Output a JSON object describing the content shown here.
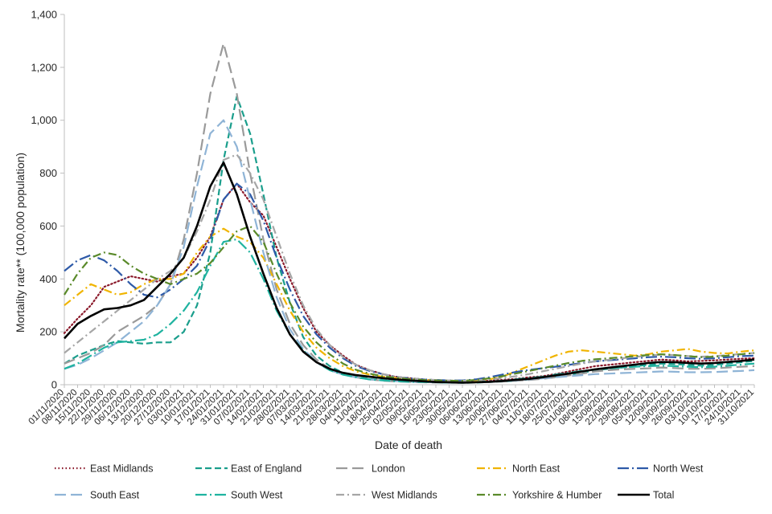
{
  "chart_data": {
    "type": "line",
    "title": "",
    "xlabel": "Date of death",
    "ylabel": "Mortality rate** (100,000 population)",
    "ylim": [
      0,
      1400
    ],
    "yticks": [
      0,
      200,
      400,
      600,
      800,
      1000,
      1200,
      1400
    ],
    "ytick_labels": [
      "0",
      "200",
      "400",
      "600",
      "800",
      "1,000",
      "1,200",
      "1,400"
    ],
    "grid": false,
    "legend_position": "bottom",
    "xtick_labels": [
      "01/11/2020",
      "08/11/2020",
      "15/11/2020",
      "22/11/2020",
      "29/11/2020",
      "06/12/2020",
      "13/12/2020",
      "20/12/2020",
      "27/12/2020",
      "03/01/2021",
      "10/01/2021",
      "17/01/2021",
      "24/01/2021",
      "31/01/2021",
      "07/02/2021",
      "14/02/2021",
      "21/02/2021",
      "28/02/2021",
      "07/03/2021",
      "14/03/2021",
      "21/03/2021",
      "28/03/2021",
      "04/04/2021",
      "11/04/2021",
      "18/04/2021",
      "25/04/2021",
      "02/05/2021",
      "09/05/2021",
      "16/05/2021",
      "23/05/2021",
      "30/05/2021",
      "06/06/2021",
      "13/06/2021",
      "20/06/2021",
      "27/06/2021",
      "04/07/2021",
      "11/07/2021",
      "18/07/2021",
      "25/07/2021",
      "01/08/2021",
      "08/08/2021",
      "15/08/2021",
      "22/08/2021",
      "29/08/2021",
      "05/09/2021",
      "12/09/2021",
      "19/09/2021",
      "26/09/2021",
      "03/10/2021",
      "10/10/2021",
      "17/10/2021",
      "24/10/2021",
      "31/10/2021"
    ],
    "series": [
      {
        "name": "East Midlands",
        "color": "#8b1a2b",
        "dash": "dot",
        "values": [
          195,
          250,
          300,
          370,
          390,
          410,
          400,
          390,
          410,
          420,
          480,
          560,
          700,
          760,
          690,
          640,
          520,
          400,
          290,
          200,
          150,
          110,
          75,
          55,
          40,
          30,
          25,
          20,
          15,
          12,
          10,
          12,
          15,
          18,
          22,
          28,
          32,
          40,
          50,
          60,
          70,
          75,
          80,
          85,
          90,
          95,
          92,
          88,
          90,
          92,
          95,
          98,
          100
        ]
      },
      {
        "name": "East of England",
        "color": "#1a9e8c",
        "dash": "dash",
        "values": [
          80,
          110,
          130,
          150,
          165,
          160,
          155,
          160,
          160,
          200,
          300,
          500,
          850,
          1090,
          950,
          720,
          480,
          310,
          180,
          110,
          70,
          45,
          30,
          22,
          18,
          15,
          12,
          10,
          9,
          8,
          7,
          8,
          10,
          12,
          15,
          20,
          25,
          30,
          38,
          45,
          55,
          60,
          65,
          70,
          75,
          80,
          78,
          75,
          72,
          75,
          80,
          85,
          90
        ]
      },
      {
        "name": "London",
        "color": "#9a9a9a",
        "dash": "longdash",
        "values": [
          80,
          100,
          120,
          150,
          200,
          230,
          260,
          300,
          380,
          550,
          800,
          1100,
          1290,
          1100,
          800,
          550,
          360,
          230,
          150,
          95,
          60,
          40,
          28,
          20,
          15,
          12,
          10,
          9,
          8,
          7,
          7,
          8,
          10,
          12,
          15,
          18,
          22,
          28,
          35,
          42,
          50,
          55,
          58,
          60,
          62,
          65,
          63,
          60,
          60,
          62,
          65,
          68,
          70
        ]
      },
      {
        "name": "North East",
        "color": "#f0b400",
        "dash": "dashdot",
        "values": [
          300,
          340,
          380,
          360,
          340,
          350,
          380,
          400,
          400,
          420,
          500,
          560,
          590,
          560,
          540,
          480,
          380,
          280,
          200,
          140,
          100,
          70,
          50,
          38,
          30,
          25,
          20,
          18,
          15,
          14,
          14,
          16,
          20,
          30,
          50,
          70,
          90,
          110,
          125,
          130,
          125,
          120,
          115,
          110,
          115,
          125,
          130,
          135,
          125,
          120,
          118,
          125,
          130
        ]
      },
      {
        "name": "North West",
        "color": "#2e5aa8",
        "dash": "longdashdot",
        "values": [
          430,
          470,
          490,
          470,
          430,
          380,
          340,
          330,
          360,
          400,
          450,
          550,
          700,
          760,
          720,
          620,
          480,
          360,
          260,
          190,
          140,
          100,
          70,
          52,
          40,
          30,
          24,
          20,
          18,
          16,
          16,
          20,
          28,
          38,
          48,
          56,
          62,
          68,
          75,
          82,
          88,
          92,
          96,
          100,
          104,
          106,
          104,
          100,
          98,
          100,
          104,
          108,
          110
        ]
      },
      {
        "name": "South East",
        "color": "#8fb4d6",
        "dash": "longdash",
        "values": [
          60,
          75,
          100,
          130,
          160,
          200,
          240,
          300,
          380,
          520,
          750,
          950,
          1000,
          900,
          700,
          500,
          330,
          210,
          135,
          85,
          55,
          38,
          28,
          20,
          16,
          13,
          11,
          10,
          9,
          8,
          8,
          9,
          11,
          13,
          16,
          20,
          24,
          28,
          32,
          36,
          40,
          42,
          44,
          46,
          48,
          50,
          49,
          47,
          47,
          48,
          50,
          52,
          55
        ]
      },
      {
        "name": "South West",
        "color": "#1fb3a0",
        "dash": "longdashdot",
        "values": [
          60,
          80,
          110,
          140,
          160,
          165,
          170,
          190,
          230,
          280,
          350,
          450,
          540,
          550,
          500,
          400,
          280,
          190,
          130,
          85,
          55,
          38,
          28,
          20,
          16,
          13,
          11,
          10,
          9,
          8,
          8,
          10,
          12,
          15,
          20,
          25,
          30,
          38,
          45,
          52,
          58,
          62,
          65,
          68,
          70,
          72,
          70,
          68,
          66,
          68,
          72,
          76,
          80
        ]
      },
      {
        "name": "West Midlands",
        "color": "#a6a6a6",
        "dash": "dashdot",
        "values": [
          120,
          160,
          200,
          240,
          280,
          320,
          360,
          400,
          430,
          480,
          580,
          700,
          850,
          870,
          800,
          700,
          560,
          420,
          300,
          210,
          150,
          105,
          75,
          55,
          40,
          30,
          24,
          20,
          18,
          16,
          15,
          17,
          20,
          25,
          32,
          40,
          50,
          60,
          70,
          80,
          88,
          94,
          100,
          105,
          110,
          114,
          112,
          108,
          106,
          108,
          112,
          116,
          120
        ]
      },
      {
        "name": "Yorkshire & Humber",
        "color": "#5a8a2a",
        "dash": "dashdot",
        "values": [
          340,
          420,
          480,
          500,
          490,
          450,
          420,
          400,
          380,
          400,
          420,
          460,
          520,
          580,
          600,
          540,
          420,
          310,
          220,
          160,
          115,
          80,
          56,
          42,
          32,
          26,
          21,
          18,
          16,
          15,
          15,
          18,
          24,
          32,
          42,
          52,
          62,
          72,
          82,
          90,
          96,
          100,
          104,
          108,
          112,
          115,
          112,
          108,
          104,
          106,
          110,
          115,
          120
        ]
      },
      {
        "name": "Total",
        "color": "#000000",
        "dash": "solid",
        "values": [
          175,
          230,
          260,
          285,
          290,
          300,
          320,
          370,
          420,
          480,
          600,
          750,
          840,
          720,
          560,
          420,
          290,
          190,
          125,
          85,
          60,
          45,
          36,
          30,
          25,
          20,
          16,
          13,
          10,
          9,
          8,
          9,
          11,
          14,
          18,
          22,
          28,
          35,
          42,
          50,
          58,
          64,
          70,
          76,
          82,
          86,
          85,
          82,
          80,
          82,
          86,
          90,
          95
        ]
      }
    ]
  }
}
